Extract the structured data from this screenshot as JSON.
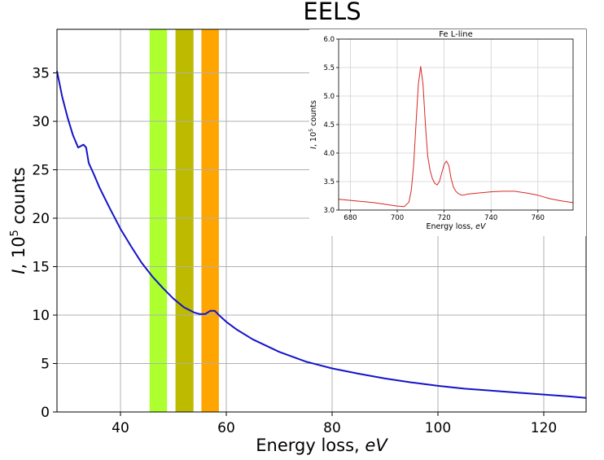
{
  "chart_data": [
    {
      "type": "line",
      "title": "EELS",
      "xlabel": "Energy loss, ",
      "xlabel_italic": "eV",
      "ylabel_italic": "I",
      "ylabel": ", 10",
      "ylabel_exp": "5",
      "ylabel_tail": " counts",
      "xlim": [
        28,
        128
      ],
      "ylim": [
        0,
        39.5
      ],
      "xticks": [
        40,
        60,
        80,
        100,
        120
      ],
      "yticks": [
        0,
        5,
        10,
        15,
        20,
        25,
        30,
        35
      ],
      "grid": true,
      "colors": {
        "line": "#1414c8",
        "band1": "#adff2f",
        "band2": "#bdba00",
        "band3": "#ffa500"
      },
      "bands": [
        {
          "x0": 45.5,
          "x1": 48.8
        },
        {
          "x0": 50.4,
          "x1": 53.8
        },
        {
          "x0": 55.3,
          "x1": 58.6
        }
      ],
      "series": [
        {
          "x": [
            28,
            29,
            30,
            31,
            32,
            33,
            33.5,
            34,
            35,
            36,
            38,
            40,
            42,
            44,
            46,
            48,
            50,
            52,
            54,
            55,
            56,
            57,
            57.8,
            59,
            60,
            62,
            65,
            70,
            75,
            80,
            85,
            90,
            95,
            100,
            105,
            110,
            115,
            120,
            125,
            128
          ],
          "y": [
            35.2,
            32.5,
            30.4,
            28.6,
            27.3,
            27.6,
            27.3,
            25.7,
            24.5,
            23.2,
            21.0,
            18.9,
            17.1,
            15.4,
            14.0,
            12.8,
            11.7,
            10.8,
            10.25,
            10.1,
            10.1,
            10.45,
            10.45,
            9.8,
            9.3,
            8.5,
            7.5,
            6.2,
            5.2,
            4.5,
            3.95,
            3.45,
            3.05,
            2.7,
            2.4,
            2.2,
            2.0,
            1.8,
            1.6,
            1.45
          ]
        }
      ]
    },
    {
      "type": "line",
      "title": "Fe L-line",
      "xlabel": "Energy loss, ",
      "xlabel_italic": "eV",
      "ylabel_italic": "I",
      "ylabel": ", 10",
      "ylabel_exp": "5",
      "ylabel_tail": " counts",
      "xlim": [
        675,
        775
      ],
      "ylim": [
        3.0,
        6.0
      ],
      "xticks": [
        680,
        700,
        720,
        740,
        760
      ],
      "yticks": [
        3.0,
        3.5,
        4.0,
        4.5,
        5.0,
        5.5,
        6.0
      ],
      "ytick_labels": [
        "3.0",
        "3.5",
        "4.0",
        "4.5",
        "5.0",
        "5.5",
        "6.0"
      ],
      "grid": true,
      "colors": {
        "line": "#d62728"
      },
      "series": [
        {
          "x": [
            675,
            680,
            685,
            690,
            695,
            700,
            703,
            705,
            706,
            707,
            708,
            709,
            710,
            711,
            712,
            713,
            714,
            715,
            716,
            717,
            718,
            719,
            720,
            721,
            722,
            723,
            724,
            725,
            726,
            727,
            728,
            730,
            735,
            740,
            745,
            750,
            755,
            760,
            765,
            770,
            775
          ],
          "y": [
            3.19,
            3.17,
            3.15,
            3.13,
            3.1,
            3.07,
            3.06,
            3.14,
            3.35,
            3.8,
            4.5,
            5.2,
            5.52,
            5.2,
            4.5,
            3.95,
            3.7,
            3.55,
            3.47,
            3.44,
            3.5,
            3.65,
            3.8,
            3.86,
            3.78,
            3.55,
            3.4,
            3.33,
            3.29,
            3.27,
            3.26,
            3.28,
            3.3,
            3.32,
            3.33,
            3.33,
            3.3,
            3.26,
            3.2,
            3.16,
            3.13
          ]
        }
      ]
    }
  ]
}
